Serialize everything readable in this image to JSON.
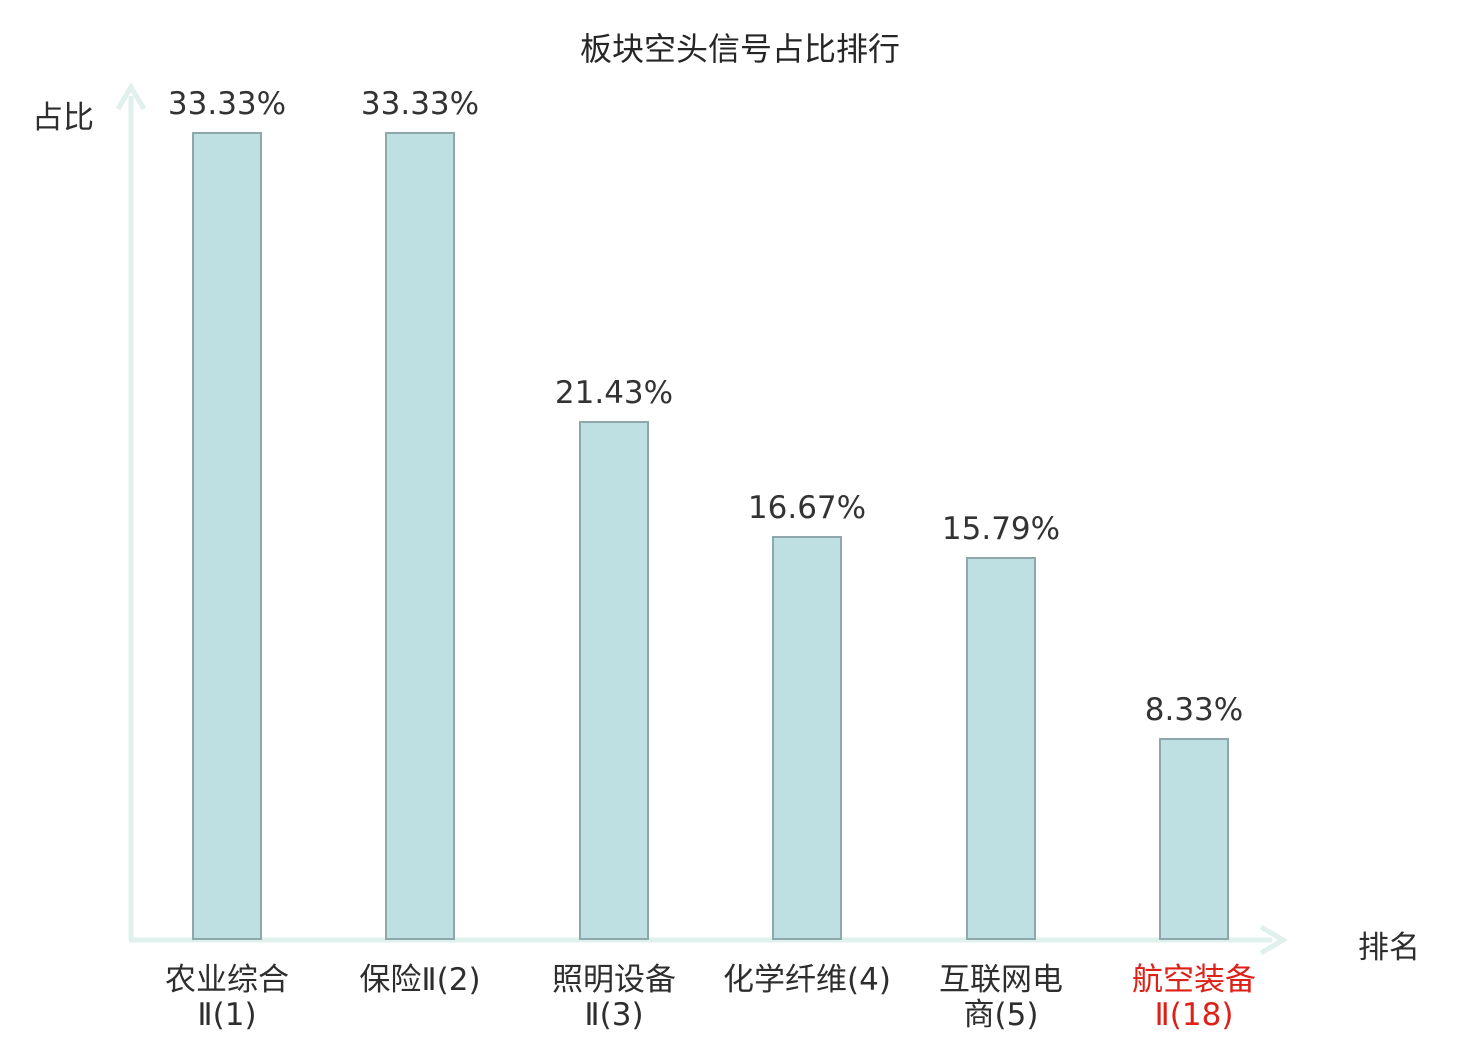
{
  "chart_data": {
    "type": "bar",
    "title": "板块空头信号占比排行",
    "ylabel": "占比",
    "xlabel": "排名",
    "categories": [
      "农业综合Ⅱ(1)",
      "保险Ⅱ(2)",
      "照明设备Ⅱ(3)",
      "化学纤维(4)",
      "互联网电商(5)",
      "航空装备Ⅱ(18)"
    ],
    "values": [
      33.33,
      33.33,
      21.43,
      16.67,
      15.79,
      8.33
    ],
    "value_labels": [
      "33.33%",
      "33.33%",
      "21.43%",
      "16.67%",
      "15.79%",
      "8.33%"
    ],
    "categories_display": [
      {
        "line1": "农业综合",
        "line2": "Ⅱ(1)"
      },
      {
        "line1": "保险Ⅱ(2)",
        "line2": ""
      },
      {
        "line1": "照明设备",
        "line2": "Ⅱ(3)"
      },
      {
        "line1": "化学纤维(4)",
        "line2": ""
      },
      {
        "line1": "互联网电",
        "line2": "商(5)"
      },
      {
        "line1": "航空装备",
        "line2": "Ⅱ(18)"
      }
    ],
    "highlighted_category_index": 5,
    "ylim": [
      0,
      35
    ],
    "grid": false,
    "legend": false,
    "colors": {
      "bar_fill": "#bee0e3",
      "bar_border": "#8ea7aa",
      "axis": "#e0f0ed",
      "text": "#2e2e2e",
      "highlight_text": "#dd2018"
    }
  }
}
